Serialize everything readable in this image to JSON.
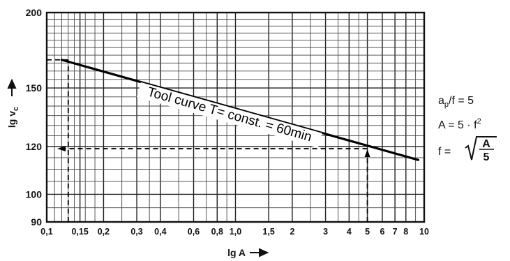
{
  "chart_data": {
    "type": "line",
    "title": "",
    "xlabel": "lg A",
    "ylabel": "lg v",
    "ylabel_sub": "c",
    "x_scale": "log",
    "y_scale": "log",
    "xlim": [
      0.1,
      10
    ],
    "ylim": [
      90,
      200
    ],
    "grid": true,
    "x_tick_values": [
      0.1,
      0.15,
      0.2,
      0.3,
      0.4,
      0.6,
      0.8,
      1.0,
      1.5,
      2,
      3,
      4,
      5,
      6,
      7,
      8,
      10
    ],
    "x_tick_labels": [
      "0,1",
      "0,15",
      "0,2",
      "0,3",
      "0,4",
      "0,6",
      "0,8",
      "1,0",
      "1,5",
      "2",
      "3",
      "4",
      "5",
      "6",
      "7",
      "8",
      "10"
    ],
    "y_tick_values": [
      90,
      100,
      120,
      150,
      200
    ],
    "y_tick_labels": [
      "90",
      "100",
      "120",
      "150",
      "200"
    ],
    "series": [
      {
        "values_x": [
          0.12,
          9.3
        ],
        "values_y": [
          167,
          114
        ]
      }
    ],
    "annotations": {
      "curve_label": "Tool curve T= const. = 60min",
      "reference_point": {
        "x": 5,
        "y": 119
      },
      "reference_x_secondary": 0.13,
      "reference_y_secondary": 167
    },
    "side_formulas": {
      "line1_a": "a",
      "line1_sub": "p",
      "line1_b": "/f = 5",
      "line2": "A = 5 · f",
      "line2_sup": "2",
      "line3_lhs": "f =",
      "line3_num": "A",
      "line3_den": "5"
    }
  }
}
